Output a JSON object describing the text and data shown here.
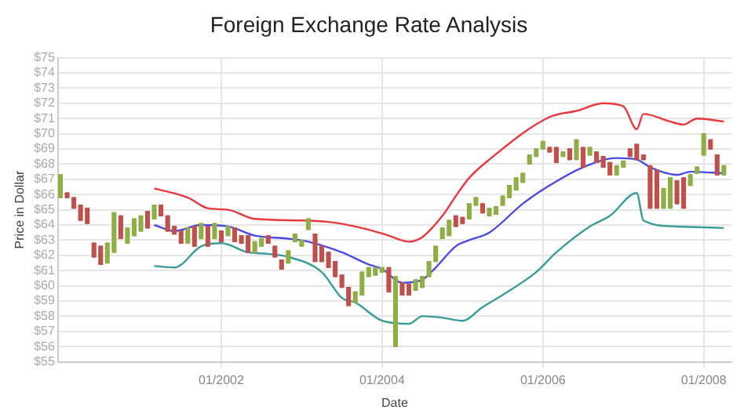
{
  "chart_data": {
    "type": "candlestick",
    "title": "Foreign Exchange Rate Analysis",
    "xlabel": "Date",
    "ylabel": "Price in Dollar",
    "xlim": [
      "1999-12-20",
      "2008-05-05"
    ],
    "xticks": [
      {
        "value": "2002-01",
        "label": "01/2002"
      },
      {
        "value": "2004-01",
        "label": "01/2004"
      },
      {
        "value": "2006-01",
        "label": "01/2006"
      },
      {
        "value": "2008-01",
        "label": "01/2008"
      }
    ],
    "ylim": [
      55,
      75
    ],
    "yticks": [
      {
        "value": 55,
        "label": "$55"
      },
      {
        "value": 56,
        "label": "$56"
      },
      {
        "value": 57,
        "label": "$57"
      },
      {
        "value": 58,
        "label": "$58"
      },
      {
        "value": 59,
        "label": "$59"
      },
      {
        "value": 60,
        "label": "$60"
      },
      {
        "value": 61,
        "label": "$61"
      },
      {
        "value": 62,
        "label": "$62"
      },
      {
        "value": 63,
        "label": "$63"
      },
      {
        "value": 64,
        "label": "$64"
      },
      {
        "value": 65,
        "label": "$65"
      },
      {
        "value": 66,
        "label": "$66"
      },
      {
        "value": 67,
        "label": "$67"
      },
      {
        "value": 68,
        "label": "$68"
      },
      {
        "value": 69,
        "label": "$69"
      },
      {
        "value": 70,
        "label": "$70"
      },
      {
        "value": 71,
        "label": "$71"
      },
      {
        "value": 72,
        "label": "$72"
      },
      {
        "value": 73,
        "label": "$73"
      },
      {
        "value": 74,
        "label": "$74"
      },
      {
        "value": 75,
        "label": "$75"
      }
    ],
    "grid": true,
    "legend": false,
    "series": [
      {
        "type": "candlestick",
        "x": [
          "2000-01",
          "2000-02",
          "2000-03",
          "2000-04",
          "2000-05",
          "2000-06",
          "2000-07",
          "2000-08",
          "2000-09",
          "2000-10",
          "2000-11",
          "2000-12",
          "2001-01",
          "2001-02",
          "2001-03",
          "2001-04",
          "2001-05",
          "2001-06",
          "2001-07",
          "2001-08",
          "2001-09",
          "2001-10",
          "2001-11",
          "2001-12",
          "2002-01",
          "2002-02",
          "2002-03",
          "2002-04",
          "2002-05",
          "2002-06",
          "2002-07",
          "2002-08",
          "2002-09",
          "2002-10",
          "2002-11",
          "2002-12",
          "2003-01",
          "2003-02",
          "2003-03",
          "2003-04",
          "2003-05",
          "2003-06",
          "2003-07",
          "2003-08",
          "2003-09",
          "2003-10",
          "2003-11",
          "2003-12",
          "2004-01",
          "2004-02",
          "2004-03",
          "2004-04",
          "2004-05",
          "2004-06",
          "2004-07",
          "2004-08",
          "2004-09",
          "2004-10",
          "2004-11",
          "2004-12",
          "2005-01",
          "2005-02",
          "2005-03",
          "2005-04",
          "2005-05",
          "2005-06",
          "2005-07",
          "2005-08",
          "2005-09",
          "2005-10",
          "2005-11",
          "2005-12",
          "2006-01",
          "2006-02",
          "2006-03",
          "2006-04",
          "2006-05",
          "2006-06",
          "2006-07",
          "2006-08",
          "2006-09",
          "2006-10",
          "2006-11",
          "2006-12",
          "2007-01",
          "2007-02",
          "2007-03",
          "2007-04",
          "2007-05",
          "2007-06",
          "2007-07",
          "2007-08",
          "2007-09",
          "2007-10",
          "2007-11",
          "2007-12",
          "2008-01",
          "2008-02",
          "2008-03",
          "2008-04"
        ],
        "ohlc": [
          [
            65.8,
            67.3,
            65.8,
            67.3
          ],
          [
            66.1,
            66.1,
            65.8,
            65.8
          ],
          [
            65.8,
            65.8,
            65.1,
            65.1
          ],
          [
            65.3,
            65.3,
            64.3,
            64.3
          ],
          [
            65.1,
            65.1,
            64.1,
            64.1
          ],
          [
            62.8,
            62.8,
            61.9,
            61.9
          ],
          [
            62.6,
            62.6,
            61.4,
            61.4
          ],
          [
            61.5,
            62.8,
            61.5,
            62.8
          ],
          [
            62.2,
            64.8,
            62.2,
            64.8
          ],
          [
            64.6,
            64.6,
            63.1,
            63.1
          ],
          [
            62.8,
            63.8,
            62.8,
            63.8
          ],
          [
            63.3,
            64.4,
            63.3,
            64.4
          ],
          [
            63.6,
            64.6,
            63.6,
            64.6
          ],
          [
            64.9,
            64.9,
            63.8,
            63.8
          ],
          [
            64.4,
            65.3,
            64.4,
            65.3
          ],
          [
            65.3,
            65.3,
            64.6,
            64.6
          ],
          [
            64.6,
            64.6,
            63.6,
            63.6
          ],
          [
            63.9,
            63.9,
            63.4,
            63.4
          ],
          [
            63.6,
            63.6,
            62.8,
            62.8
          ],
          [
            62.8,
            63.8,
            62.8,
            63.8
          ],
          [
            63.9,
            63.9,
            62.6,
            62.6
          ],
          [
            63.1,
            64.1,
            63.1,
            64.1
          ],
          [
            63.9,
            63.9,
            62.6,
            62.6
          ],
          [
            63.1,
            64.1,
            63.1,
            64.1
          ],
          [
            63.6,
            63.6,
            62.9,
            62.9
          ],
          [
            63.3,
            63.9,
            63.3,
            63.9
          ],
          [
            63.8,
            63.8,
            62.9,
            62.9
          ],
          [
            63.3,
            63.3,
            62.8,
            62.8
          ],
          [
            63.3,
            63.3,
            62.2,
            62.2
          ],
          [
            62.2,
            62.9,
            62.2,
            62.9
          ],
          [
            62.6,
            63.1,
            62.6,
            63.1
          ],
          [
            63.3,
            63.3,
            62.8,
            62.8
          ],
          [
            62.6,
            62.6,
            61.9,
            61.9
          ],
          [
            61.7,
            61.7,
            61.1,
            61.1
          ],
          [
            61.5,
            62.3,
            61.5,
            62.3
          ],
          [
            62.9,
            63.4,
            62.9,
            63.4
          ],
          [
            62.6,
            63.0,
            62.6,
            63.0
          ],
          [
            63.7,
            64.4,
            63.7,
            64.4
          ],
          [
            63.4,
            63.4,
            61.6,
            61.6
          ],
          [
            62.6,
            62.6,
            61.6,
            61.6
          ],
          [
            62.2,
            62.2,
            61.2,
            61.2
          ],
          [
            61.6,
            61.6,
            60.6,
            60.6
          ],
          [
            60.7,
            60.7,
            59.9,
            59.9
          ],
          [
            59.9,
            59.9,
            58.7,
            58.7
          ],
          [
            58.9,
            59.6,
            58.9,
            59.6
          ],
          [
            59.4,
            60.9,
            59.4,
            60.9
          ],
          [
            60.6,
            61.2,
            60.6,
            61.2
          ],
          [
            60.7,
            61.2,
            60.7,
            61.2
          ],
          [
            60.9,
            61.2,
            60.9,
            61.2
          ],
          [
            61.2,
            61.2,
            59.6,
            59.6
          ],
          [
            56.0,
            60.6,
            56.0,
            60.6
          ],
          [
            60.2,
            60.2,
            59.4,
            59.4
          ],
          [
            60.1,
            60.1,
            59.4,
            59.4
          ],
          [
            59.7,
            60.4,
            59.7,
            60.4
          ],
          [
            59.9,
            60.6,
            59.9,
            60.6
          ],
          [
            60.6,
            61.6,
            60.6,
            61.6
          ],
          [
            61.6,
            62.6,
            61.6,
            62.6
          ],
          [
            63.1,
            63.8,
            63.1,
            63.8
          ],
          [
            63.3,
            64.3,
            63.3,
            64.3
          ],
          [
            64.6,
            64.6,
            63.9,
            63.9
          ],
          [
            64.5,
            64.5,
            64.1,
            64.1
          ],
          [
            64.4,
            65.4,
            64.4,
            65.4
          ],
          [
            65.3,
            65.8,
            65.3,
            65.8
          ],
          [
            65.4,
            65.4,
            64.8,
            64.8
          ],
          [
            64.6,
            65.1,
            64.6,
            65.1
          ],
          [
            64.7,
            65.2,
            64.7,
            65.2
          ],
          [
            65.3,
            65.9,
            65.3,
            65.9
          ],
          [
            65.8,
            66.6,
            65.8,
            66.6
          ],
          [
            66.3,
            67.1,
            66.3,
            67.1
          ],
          [
            66.8,
            67.4,
            66.8,
            67.4
          ],
          [
            68.0,
            68.6,
            68.0,
            68.6
          ],
          [
            68.5,
            69.0,
            68.5,
            69.0
          ],
          [
            69.0,
            69.5,
            69.0,
            69.5
          ],
          [
            69.1,
            69.1,
            68.8,
            68.8
          ],
          [
            69.1,
            69.1,
            68.1,
            68.1
          ],
          [
            68.5,
            68.8,
            68.5,
            68.8
          ],
          [
            69.0,
            69.0,
            68.3,
            68.3
          ],
          [
            68.3,
            69.6,
            68.3,
            69.6
          ],
          [
            69.1,
            69.1,
            67.8,
            67.8
          ],
          [
            68.6,
            69.1,
            68.6,
            69.1
          ],
          [
            68.8,
            68.8,
            68.1,
            68.1
          ],
          [
            68.5,
            68.5,
            67.8,
            67.8
          ],
          [
            68.1,
            68.1,
            67.3,
            67.3
          ],
          [
            67.3,
            67.9,
            67.3,
            67.9
          ],
          [
            67.8,
            68.2,
            67.8,
            68.2
          ],
          [
            69.0,
            69.0,
            68.5,
            68.5
          ],
          [
            69.3,
            69.3,
            68.3,
            68.3
          ],
          [
            68.6,
            68.6,
            68.3,
            68.3
          ],
          [
            67.9,
            67.9,
            65.1,
            65.1
          ],
          [
            67.6,
            67.6,
            65.1,
            65.1
          ],
          [
            65.1,
            66.4,
            65.1,
            66.4
          ],
          [
            65.1,
            67.1,
            65.1,
            67.1
          ],
          [
            66.9,
            66.9,
            65.4,
            65.4
          ],
          [
            67.1,
            67.1,
            65.1,
            65.1
          ],
          [
            66.6,
            67.3,
            66.6,
            67.3
          ],
          [
            67.4,
            67.8,
            67.4,
            67.8
          ],
          [
            68.6,
            70.0,
            68.6,
            70.0
          ],
          [
            69.6,
            69.6,
            69.0,
            69.0
          ],
          [
            68.6,
            68.6,
            67.3,
            67.3
          ],
          [
            67.3,
            67.9,
            67.3,
            67.9
          ]
        ],
        "colors": [
          "#8fae45",
          "#c0504d",
          "#c0504d",
          "#c0504d",
          "#c0504d",
          "#c0504d",
          "#c0504d",
          "#8fae45",
          "#8fae45",
          "#c0504d",
          "#8fae45",
          "#8fae45",
          "#8fae45",
          "#c0504d",
          "#8fae45",
          "#c0504d",
          "#c0504d",
          "#c0504d",
          "#c0504d",
          "#8fae45",
          "#c0504d",
          "#8fae45",
          "#c0504d",
          "#8fae45",
          "#c0504d",
          "#8fae45",
          "#c0504d",
          "#c0504d",
          "#c0504d",
          "#8fae45",
          "#8fae45",
          "#c0504d",
          "#c0504d",
          "#c0504d",
          "#8fae45",
          "#8fae45",
          "#8fae45",
          "#8fae45",
          "#c0504d",
          "#c0504d",
          "#c0504d",
          "#c0504d",
          "#c0504d",
          "#c0504d",
          "#8fae45",
          "#8fae45",
          "#8fae45",
          "#8fae45",
          "#8fae45",
          "#c0504d",
          "#8fae45",
          "#c0504d",
          "#c0504d",
          "#8fae45",
          "#8fae45",
          "#8fae45",
          "#8fae45",
          "#8fae45",
          "#8fae45",
          "#c0504d",
          "#c0504d",
          "#8fae45",
          "#8fae45",
          "#c0504d",
          "#8fae45",
          "#8fae45",
          "#8fae45",
          "#8fae45",
          "#8fae45",
          "#8fae45",
          "#8fae45",
          "#8fae45",
          "#8fae45",
          "#c0504d",
          "#c0504d",
          "#8fae45",
          "#c0504d",
          "#8fae45",
          "#c0504d",
          "#8fae45",
          "#c0504d",
          "#c0504d",
          "#c0504d",
          "#8fae45",
          "#8fae45",
          "#c0504d",
          "#c0504d",
          "#c0504d",
          "#c0504d",
          "#c0504d",
          "#8fae45",
          "#8fae45",
          "#c0504d",
          "#c0504d",
          "#8fae45",
          "#8fae45",
          "#8fae45",
          "#c0504d",
          "#c0504d",
          "#8fae45"
        ]
      },
      {
        "type": "line",
        "color": "#e8383d",
        "x": [
          "2001-03",
          "2001-08",
          "2001-11",
          "2002-02",
          "2002-06",
          "2003-01",
          "2003-05",
          "2003-10",
          "2004-02",
          "2004-05",
          "2004-07",
          "2004-10",
          "2004-12",
          "2005-02",
          "2005-05",
          "2006-02",
          "2006-06",
          "2006-10",
          "2007-01",
          "2007-03",
          "2007-04",
          "2007-08",
          "2007-10",
          "2007-12",
          "2008-04"
        ],
        "values": [
          66.4,
          65.8,
          65.1,
          65.0,
          64.4,
          64.3,
          64.2,
          63.8,
          63.3,
          62.9,
          63.2,
          64.6,
          65.9,
          67.1,
          68.3,
          71.1,
          71.5,
          72.0,
          71.8,
          70.3,
          71.3,
          70.8,
          70.6,
          71.0,
          70.8
        ]
      },
      {
        "type": "line",
        "color": "#4a4ae6",
        "x": [
          "2001-03",
          "2001-06",
          "2001-10",
          "2002-02",
          "2002-06",
          "2002-11",
          "2003-02",
          "2003-07",
          "2003-11",
          "2004-01",
          "2004-04",
          "2004-07",
          "2004-09",
          "2004-12",
          "2005-02",
          "2005-05",
          "2005-10",
          "2006-02",
          "2006-07",
          "2006-12",
          "2007-03",
          "2007-05",
          "2007-09",
          "2007-11",
          "2008-04"
        ],
        "values": [
          64.0,
          63.6,
          64.0,
          63.9,
          63.3,
          63.1,
          62.9,
          62.2,
          61.4,
          61.1,
          60.2,
          60.4,
          61.2,
          62.6,
          63.0,
          63.5,
          65.4,
          66.6,
          67.8,
          68.4,
          68.3,
          67.8,
          67.3,
          67.5,
          67.4
        ]
      },
      {
        "type": "line",
        "color": "#3a9c98",
        "x": [
          "2001-03",
          "2001-06",
          "2001-10",
          "2002-01",
          "2002-05",
          "2002-08",
          "2002-11",
          "2003-04",
          "2003-07",
          "2003-09",
          "2004-01",
          "2004-05",
          "2004-07",
          "2004-10",
          "2005-01",
          "2005-04",
          "2005-07",
          "2005-12",
          "2006-03",
          "2006-08",
          "2006-11",
          "2007-03",
          "2007-04",
          "2007-09",
          "2008-04"
        ],
        "values": [
          61.3,
          61.2,
          62.6,
          62.8,
          62.2,
          62.1,
          61.9,
          60.9,
          59.2,
          58.9,
          57.7,
          57.5,
          58.0,
          57.9,
          57.7,
          58.6,
          59.4,
          60.9,
          62.2,
          63.9,
          64.6,
          66.1,
          64.3,
          63.9,
          63.8
        ]
      }
    ]
  }
}
